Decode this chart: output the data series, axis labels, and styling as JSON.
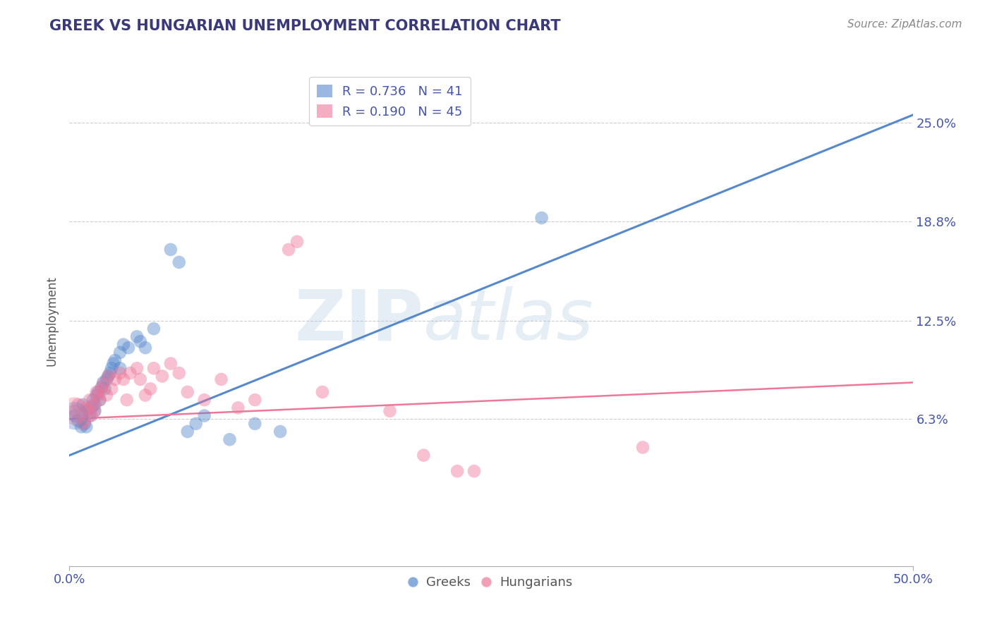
{
  "title": "GREEK VS HUNGARIAN UNEMPLOYMENT CORRELATION CHART",
  "source": "Source: ZipAtlas.com",
  "xlabel": "",
  "ylabel": "Unemployment",
  "xlim": [
    0.0,
    0.5
  ],
  "ylim": [
    -0.03,
    0.28
  ],
  "xtick_positions": [
    0.0,
    0.5
  ],
  "xtick_labels": [
    "0.0%",
    "50.0%"
  ],
  "ytick_labels": [
    "6.3%",
    "12.5%",
    "18.8%",
    "25.0%"
  ],
  "ytick_vals": [
    0.063,
    0.125,
    0.188,
    0.25
  ],
  "background_color": "#ffffff",
  "grid_color": "#cccccc",
  "title_color": "#3a3a7a",
  "watermark_zip": "ZIP",
  "watermark_atlas": "atlas",
  "legend_r1": "R = 0.736",
  "legend_n1": "N = 41",
  "legend_r2": "R = 0.190",
  "legend_n2": "N = 45",
  "blue_color": "#5588cc",
  "pink_color": "#ee7799",
  "label_blue": "Greeks",
  "label_pink": "Hungarians",
  "blue_scatter": [
    [
      0.003,
      0.065
    ],
    [
      0.005,
      0.062
    ],
    [
      0.007,
      0.058
    ],
    [
      0.008,
      0.072
    ],
    [
      0.009,
      0.06
    ],
    [
      0.01,
      0.068
    ],
    [
      0.01,
      0.058
    ],
    [
      0.012,
      0.065
    ],
    [
      0.013,
      0.07
    ],
    [
      0.014,
      0.075
    ],
    [
      0.015,
      0.068
    ],
    [
      0.015,
      0.072
    ],
    [
      0.016,
      0.078
    ],
    [
      0.017,
      0.08
    ],
    [
      0.018,
      0.075
    ],
    [
      0.019,
      0.083
    ],
    [
      0.02,
      0.086
    ],
    [
      0.021,
      0.082
    ],
    [
      0.022,
      0.088
    ],
    [
      0.023,
      0.09
    ],
    [
      0.024,
      0.092
    ],
    [
      0.025,
      0.095
    ],
    [
      0.026,
      0.098
    ],
    [
      0.027,
      0.1
    ],
    [
      0.03,
      0.095
    ],
    [
      0.03,
      0.105
    ],
    [
      0.032,
      0.11
    ],
    [
      0.035,
      0.108
    ],
    [
      0.04,
      0.115
    ],
    [
      0.042,
      0.112
    ],
    [
      0.045,
      0.108
    ],
    [
      0.05,
      0.12
    ],
    [
      0.06,
      0.17
    ],
    [
      0.065,
      0.162
    ],
    [
      0.07,
      0.055
    ],
    [
      0.075,
      0.06
    ],
    [
      0.08,
      0.065
    ],
    [
      0.095,
      0.05
    ],
    [
      0.11,
      0.06
    ],
    [
      0.125,
      0.055
    ],
    [
      0.28,
      0.19
    ]
  ],
  "pink_scatter": [
    [
      0.003,
      0.068
    ],
    [
      0.005,
      0.072
    ],
    [
      0.007,
      0.065
    ],
    [
      0.008,
      0.06
    ],
    [
      0.009,
      0.062
    ],
    [
      0.01,
      0.07
    ],
    [
      0.011,
      0.068
    ],
    [
      0.012,
      0.075
    ],
    [
      0.013,
      0.065
    ],
    [
      0.014,
      0.072
    ],
    [
      0.015,
      0.068
    ],
    [
      0.016,
      0.08
    ],
    [
      0.017,
      0.078
    ],
    [
      0.018,
      0.075
    ],
    [
      0.019,
      0.082
    ],
    [
      0.02,
      0.085
    ],
    [
      0.022,
      0.078
    ],
    [
      0.023,
      0.09
    ],
    [
      0.025,
      0.082
    ],
    [
      0.027,
      0.088
    ],
    [
      0.03,
      0.092
    ],
    [
      0.032,
      0.088
    ],
    [
      0.034,
      0.075
    ],
    [
      0.036,
      0.092
    ],
    [
      0.04,
      0.095
    ],
    [
      0.042,
      0.088
    ],
    [
      0.045,
      0.078
    ],
    [
      0.048,
      0.082
    ],
    [
      0.05,
      0.095
    ],
    [
      0.055,
      0.09
    ],
    [
      0.06,
      0.098
    ],
    [
      0.065,
      0.092
    ],
    [
      0.07,
      0.08
    ],
    [
      0.08,
      0.075
    ],
    [
      0.09,
      0.088
    ],
    [
      0.1,
      0.07
    ],
    [
      0.11,
      0.075
    ],
    [
      0.13,
      0.17
    ],
    [
      0.135,
      0.175
    ],
    [
      0.15,
      0.08
    ],
    [
      0.19,
      0.068
    ],
    [
      0.21,
      0.04
    ],
    [
      0.23,
      0.03
    ],
    [
      0.24,
      0.03
    ],
    [
      0.34,
      0.045
    ]
  ],
  "blue_line": [
    [
      0.0,
      0.04
    ],
    [
      0.5,
      0.255
    ]
  ],
  "pink_line": [
    [
      0.0,
      0.063
    ],
    [
      0.5,
      0.086
    ]
  ],
  "point_size": 180
}
